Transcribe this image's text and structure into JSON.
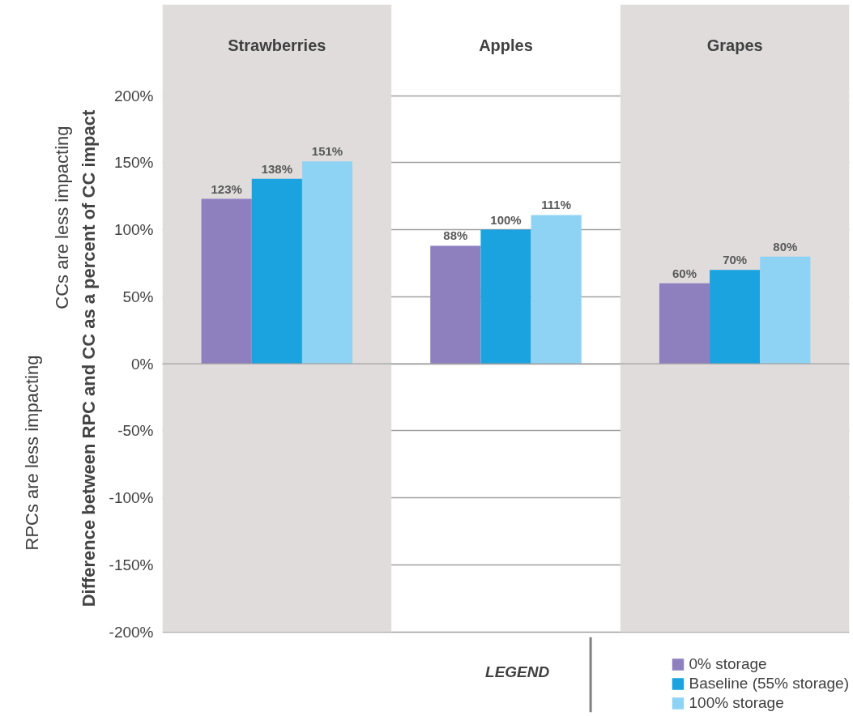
{
  "chart_data": {
    "type": "bar",
    "ylabel": "Difference between RPC and CC as a percent of CC impact",
    "categories": [
      "Strawberries",
      "Apples",
      "Grapes"
    ],
    "series": [
      {
        "name": "0% storage",
        "color": "#8e7fbf",
        "values": [
          123,
          88,
          60
        ],
        "value_labels": [
          "123%",
          "88%",
          "60%"
        ]
      },
      {
        "name": "Baseline (55% storage)",
        "color": "#1ba3e0",
        "values": [
          138,
          100,
          70
        ],
        "value_labels": [
          "138%",
          "100%",
          "70%"
        ]
      },
      {
        "name": "100% storage",
        "color": "#8fd3f4",
        "values": [
          151,
          111,
          80
        ],
        "value_labels": [
          "151%",
          "111%",
          "80%"
        ]
      }
    ],
    "ylim": [
      -200,
      200
    ],
    "yticks": [
      {
        "value": -200,
        "label": "-200%"
      },
      {
        "value": -150,
        "label": "-150%"
      },
      {
        "value": -100,
        "label": "-100%"
      },
      {
        "value": -50,
        "label": "-50%"
      },
      {
        "value": 0,
        "label": "0%"
      },
      {
        "value": 50,
        "label": "50%"
      },
      {
        "value": 100,
        "label": "100%"
      },
      {
        "value": 150,
        "label": "150%"
      },
      {
        "value": 200,
        "label": "200%"
      }
    ],
    "grid": "y",
    "legend": "bottom right",
    "legend_title": "LEGEND",
    "annotations": [
      "CCs are less impacting",
      "RPCs are less impacting"
    ]
  }
}
